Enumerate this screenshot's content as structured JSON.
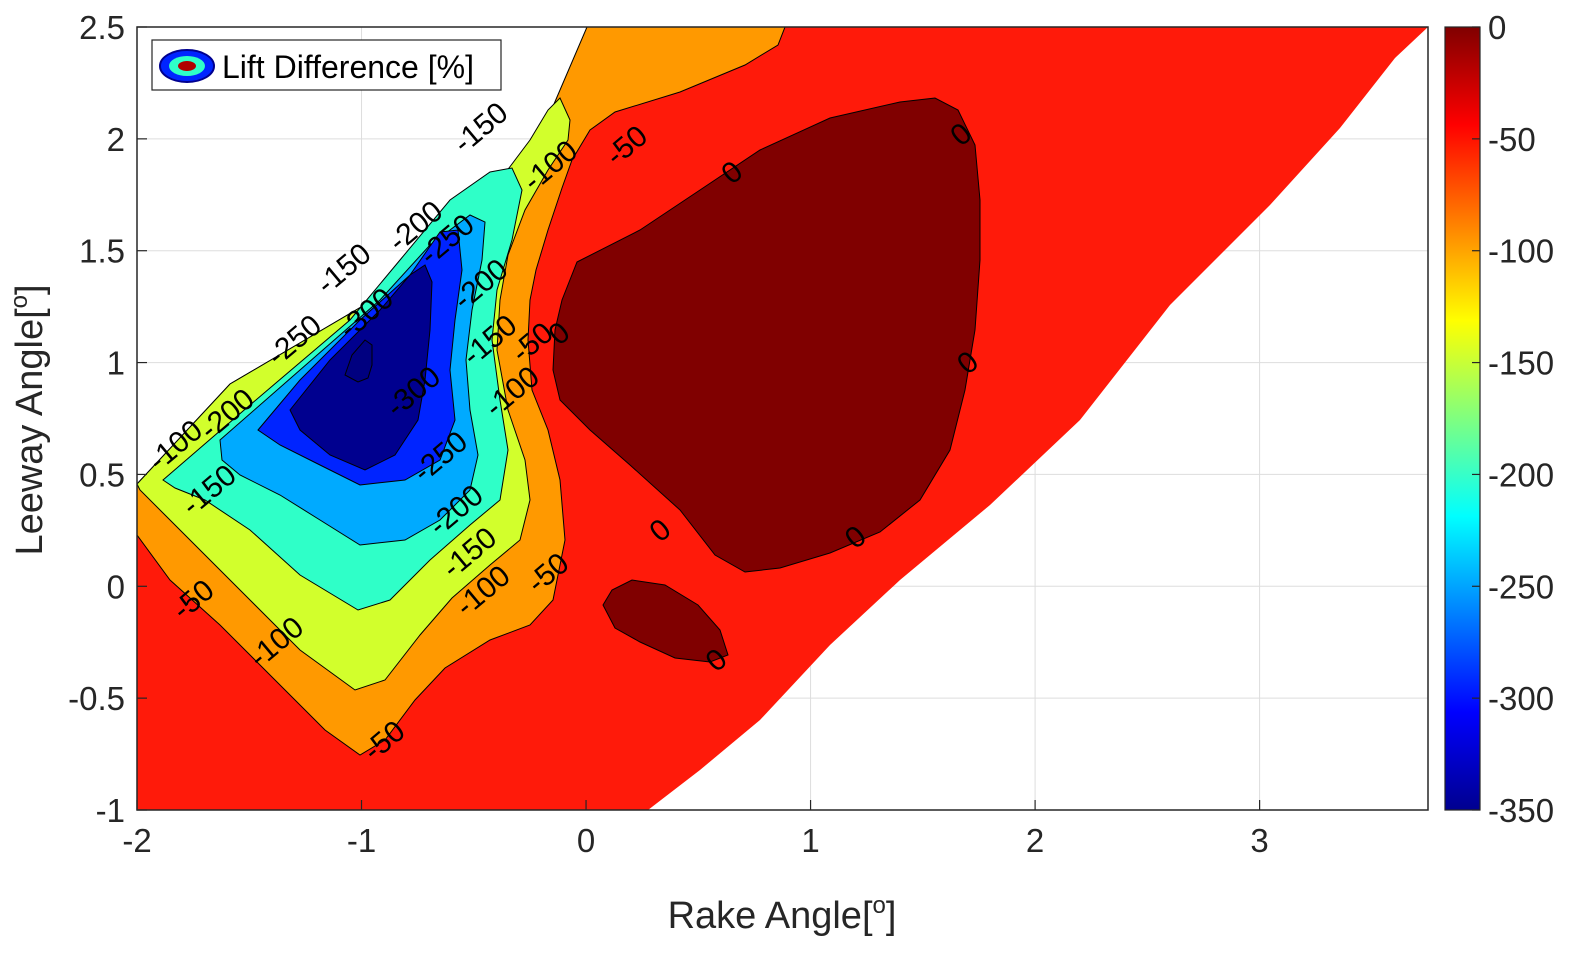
{
  "chart_data": {
    "type": "contour",
    "xlabel": "Rake Angle[",
    "xlabel_superscript": "o",
    "xlabel_close": "]",
    "ylabel": "Leeway Angle[",
    "ylabel_superscript": "o",
    "ylabel_close": "]",
    "xlim": [
      -2,
      3.75
    ],
    "ylim": [
      -1,
      2.5
    ],
    "x_ticks": [
      "-2",
      "-1",
      "0",
      "1",
      "2",
      "3"
    ],
    "y_ticks": [
      "-1",
      "-0.5",
      "0",
      "0.5",
      "1",
      "1.5",
      "2",
      "2.5"
    ],
    "grid": true,
    "legend": {
      "label": "Lift Difference [%]",
      "location": "top-left"
    },
    "colorbar": {
      "limits": [
        -350,
        0
      ],
      "ticks": [
        "0",
        "-50",
        "-100",
        "-150",
        "-200",
        "-250",
        "-300",
        "-350"
      ],
      "colormap": "jet"
    },
    "levels": [
      0,
      -50,
      -100,
      -150,
      -200,
      -250,
      -300
    ],
    "colors": {
      "above_0": "#800000",
      "-50_to_0": "#ff1a0a",
      "-100_to_-50": "#ff9900",
      "-150_to_-100": "#d2ff2c",
      "-200_to_-150": "#2fffc8",
      "-250_to_-200": "#00aaff",
      "-300_to_-250": "#0024ff",
      "below_-300": "#00008f"
    },
    "contour_labels": [
      {
        "text": "-150",
        "x": -0.47,
        "y": 2.05
      },
      {
        "text": "-100",
        "x": -0.16,
        "y": 1.88
      },
      {
        "text": "-50",
        "x": 0.18,
        "y": 1.97
      },
      {
        "text": "0",
        "x": 0.65,
        "y": 1.85
      },
      {
        "text": "0",
        "x": 1.67,
        "y": 2.02
      },
      {
        "text": "-200",
        "x": -0.76,
        "y": 1.61
      },
      {
        "text": "-250",
        "x": -0.62,
        "y": 1.55
      },
      {
        "text": "-200",
        "x": -0.47,
        "y": 1.35
      },
      {
        "text": "-150",
        "x": -1.08,
        "y": 1.42
      },
      {
        "text": "-300",
        "x": -0.98,
        "y": 1.22
      },
      {
        "text": "-150",
        "x": -0.43,
        "y": 1.1
      },
      {
        "text": "-50",
        "x": -0.24,
        "y": 1.09
      },
      {
        "text": "0",
        "x": -0.12,
        "y": 1.13
      },
      {
        "text": "-250",
        "x": -1.3,
        "y": 1.1
      },
      {
        "text": "-100",
        "x": -0.33,
        "y": 0.87
      },
      {
        "text": "0",
        "x": 1.7,
        "y": 1.0
      },
      {
        "text": "-200",
        "x": -1.6,
        "y": 0.77
      },
      {
        "text": "-300",
        "x": -0.77,
        "y": 0.87
      },
      {
        "text": "-100",
        "x": -1.83,
        "y": 0.63
      },
      {
        "text": "-250",
        "x": -0.65,
        "y": 0.58
      },
      {
        "text": "-150",
        "x": -1.68,
        "y": 0.43
      },
      {
        "text": "-200",
        "x": -0.58,
        "y": 0.34
      },
      {
        "text": "0",
        "x": 0.33,
        "y": 0.25
      },
      {
        "text": "0",
        "x": 1.2,
        "y": 0.22
      },
      {
        "text": "-150",
        "x": -0.52,
        "y": 0.15
      },
      {
        "text": "-50",
        "x": -0.17,
        "y": 0.06
      },
      {
        "text": "-100",
        "x": -0.46,
        "y": -0.02
      },
      {
        "text": "-50",
        "x": -1.75,
        "y": -0.06
      },
      {
        "text": "-100",
        "x": -1.38,
        "y": -0.25
      },
      {
        "text": "0",
        "x": 0.58,
        "y": -0.33
      },
      {
        "text": "-50",
        "x": -0.9,
        "y": -0.69
      }
    ]
  }
}
